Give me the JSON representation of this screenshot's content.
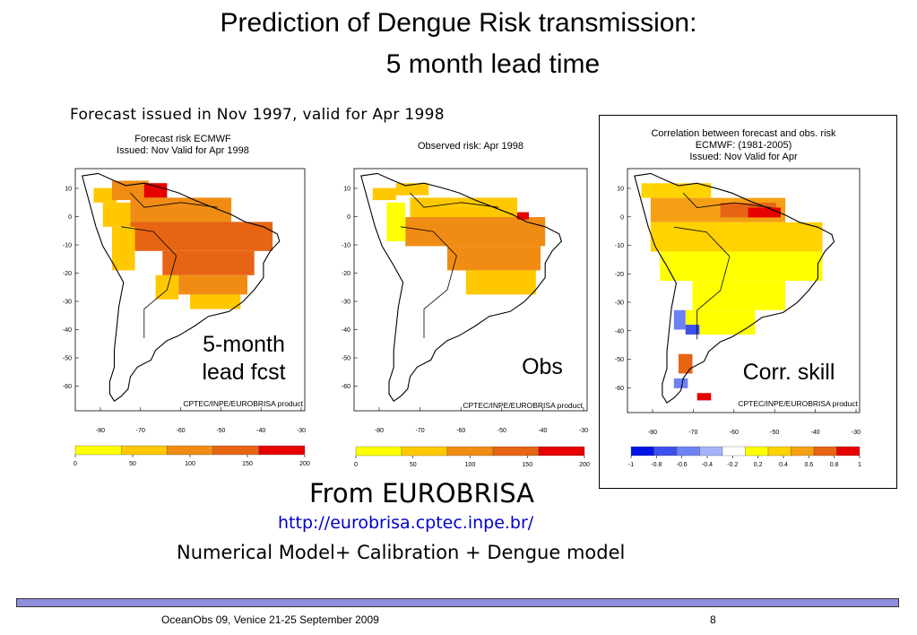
{
  "slide": {
    "title_line1": "Prediction of Dengue Risk transmission:",
    "title_line2": "5 month lead time",
    "subtitle": "Forecast issued in Nov 1997, valid for Apr 1998",
    "source_heading": "From EUROBRISA",
    "source_url": "http://eurobrisa.cptec.inpe.br/",
    "model_chain": "Numerical  Model+ Calibration + Dengue model",
    "footer": "OceanObs 09, Venice 21-25 September 2009",
    "page_number": "8"
  },
  "maps": [
    {
      "title_lines": [
        "Forecast risk ECMWF",
        "Issued: Nov       Valid for Apr 1998"
      ],
      "credit": "CPTEC/INPE/EUROBRISA product",
      "overlay_lines": [
        "5-month",
        "lead fcst"
      ],
      "colorbar": {
        "ticks": [
          "0",
          "50",
          "100",
          "150",
          "200"
        ],
        "colors": [
          "#ffff00",
          "#ffc800",
          "#f08c14",
          "#e66414",
          "#e60000"
        ]
      }
    },
    {
      "title_lines": [
        "Observed risk: Apr 1998"
      ],
      "credit": "CPTEC/INPE/EUROBRISA product",
      "overlay_lines": [
        "Obs"
      ],
      "colorbar": {
        "ticks": [
          "0",
          "50",
          "100",
          "150",
          "200"
        ],
        "colors": [
          "#ffff00",
          "#ffc800",
          "#f08c14",
          "#e66414",
          "#e60000"
        ]
      }
    },
    {
      "title_lines": [
        "Correlation between forecast and obs. risk",
        "ECMWF: (1981-2005)",
        "Issued: Nov       Valid for Apr"
      ],
      "credit": "CPTEC/INPE/EUROBRISA product",
      "overlay_lines": [
        "Corr. skill"
      ],
      "colorbar": {
        "ticks": [
          "-1",
          "-0.8",
          "-0.6",
          "-0.4",
          "-0.2",
          "0.2",
          "0.4",
          "0.6",
          "0.8",
          "1"
        ],
        "colors": [
          "#0014e6",
          "#3c50ee",
          "#6e82f5",
          "#a5b4fa",
          "#ffffff",
          "#ffff00",
          "#ffd200",
          "#f5a014",
          "#e66414",
          "#e60000"
        ]
      }
    }
  ],
  "axes": {
    "lat_ticks": [
      "10",
      "0",
      "-10",
      "-20",
      "-30",
      "-40",
      "-50",
      "-60"
    ],
    "lon_ticks": [
      "-80",
      "-70",
      "-60",
      "-50",
      "-40",
      "-30"
    ]
  },
  "colors": {
    "link": "#0000cc",
    "footer_bar": "#8f8fe0",
    "land_outline": "#000000"
  }
}
